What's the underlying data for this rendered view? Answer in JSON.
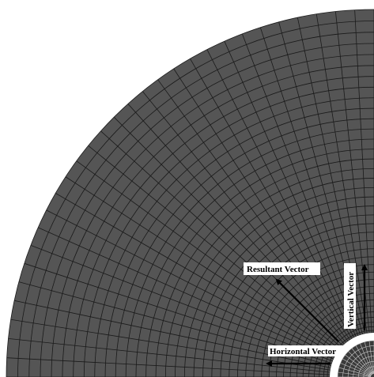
{
  "labels": {
    "resultant": "Resultant Vector",
    "vertical": "Vertical Vector",
    "horizontal": "Horizontal Vector"
  },
  "mesh": {
    "region_color": "#555555",
    "line_color": "#1a1a1a",
    "background_color": "#ffffff",
    "hole_ring_color": "#ffffff",
    "inner_core_color": "#3a3a3a",
    "arrow_color": "#000000"
  }
}
